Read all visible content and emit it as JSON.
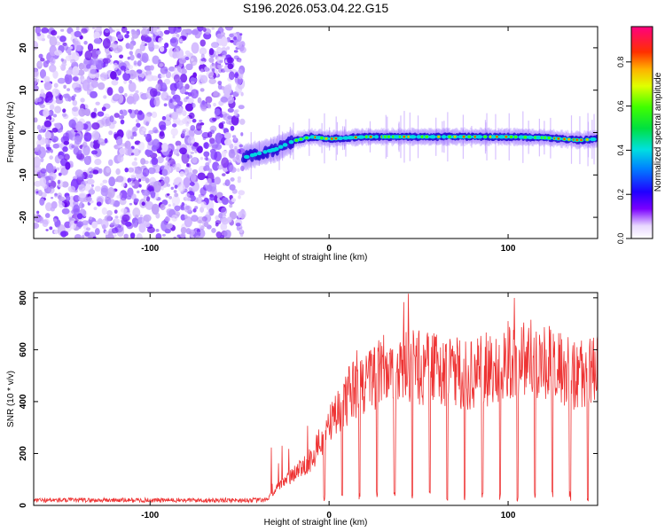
{
  "title": "S196.2026.053.04.22.G15",
  "chart_data": [
    {
      "type": "heatmap",
      "name": "spectrogram",
      "xlabel": "Height of straight line (km)",
      "ylabel": "Frequency (Hz)",
      "xlim": [
        -165,
        150
      ],
      "ylim": [
        -25,
        25
      ],
      "xticks": [
        -100,
        0,
        100
      ],
      "yticks": [
        -20,
        -10,
        0,
        10,
        20
      ],
      "ytick_labels": [
        "-20",
        "-10",
        "0",
        "10",
        "20"
      ],
      "xtick_labels": [
        "-100",
        "0",
        "100"
      ],
      "noise_region_x": [
        -165,
        -48
      ],
      "signal_track": [
        {
          "x": -48,
          "y": -6
        },
        {
          "x": -40,
          "y": -5
        },
        {
          "x": -30,
          "y": -4
        },
        {
          "x": -20,
          "y": -2
        },
        {
          "x": -10,
          "y": -1
        },
        {
          "x": 0,
          "y": -1.5
        },
        {
          "x": 20,
          "y": -1
        },
        {
          "x": 50,
          "y": -1
        },
        {
          "x": 80,
          "y": -1
        },
        {
          "x": 100,
          "y": -1
        },
        {
          "x": 120,
          "y": -1.2
        },
        {
          "x": 140,
          "y": -1.8
        },
        {
          "x": 150,
          "y": -1.5
        }
      ]
    },
    {
      "type": "line",
      "name": "snr",
      "xlabel": "Height of straight line (km)",
      "ylabel": "SNR (10 * v/v)",
      "xlim": [
        -165,
        150
      ],
      "ylim": [
        0,
        820
      ],
      "xticks": [
        -100,
        0,
        100
      ],
      "yticks": [
        0,
        200,
        400,
        600,
        800
      ],
      "xtick_labels": [
        "-100",
        "0",
        "100"
      ],
      "ytick_labels": [
        "0",
        "200",
        "400",
        "600",
        "800"
      ],
      "color": "#ee3333",
      "envelope": [
        {
          "x": -165,
          "y": 20
        },
        {
          "x": -35,
          "y": 20
        },
        {
          "x": -30,
          "y": 60
        },
        {
          "x": -20,
          "y": 120
        },
        {
          "x": -10,
          "y": 180
        },
        {
          "x": 0,
          "y": 300
        },
        {
          "x": 10,
          "y": 420
        },
        {
          "x": 20,
          "y": 480
        },
        {
          "x": 30,
          "y": 520
        },
        {
          "x": 40,
          "y": 540
        },
        {
          "x": 60,
          "y": 520
        },
        {
          "x": 80,
          "y": 500
        },
        {
          "x": 100,
          "y": 560
        },
        {
          "x": 110,
          "y": 580
        },
        {
          "x": 120,
          "y": 560
        },
        {
          "x": 130,
          "y": 520
        },
        {
          "x": 140,
          "y": 500
        },
        {
          "x": 150,
          "y": 520
        }
      ]
    }
  ],
  "colorbar": {
    "label": "Normalized spectral amplitude",
    "ticks": [
      "0.0",
      "0.2",
      "0.4",
      "0.6",
      "0.8"
    ],
    "tick_values": [
      0.0,
      0.2,
      0.4,
      0.6,
      0.8
    ],
    "range": [
      0,
      0.96
    ]
  }
}
